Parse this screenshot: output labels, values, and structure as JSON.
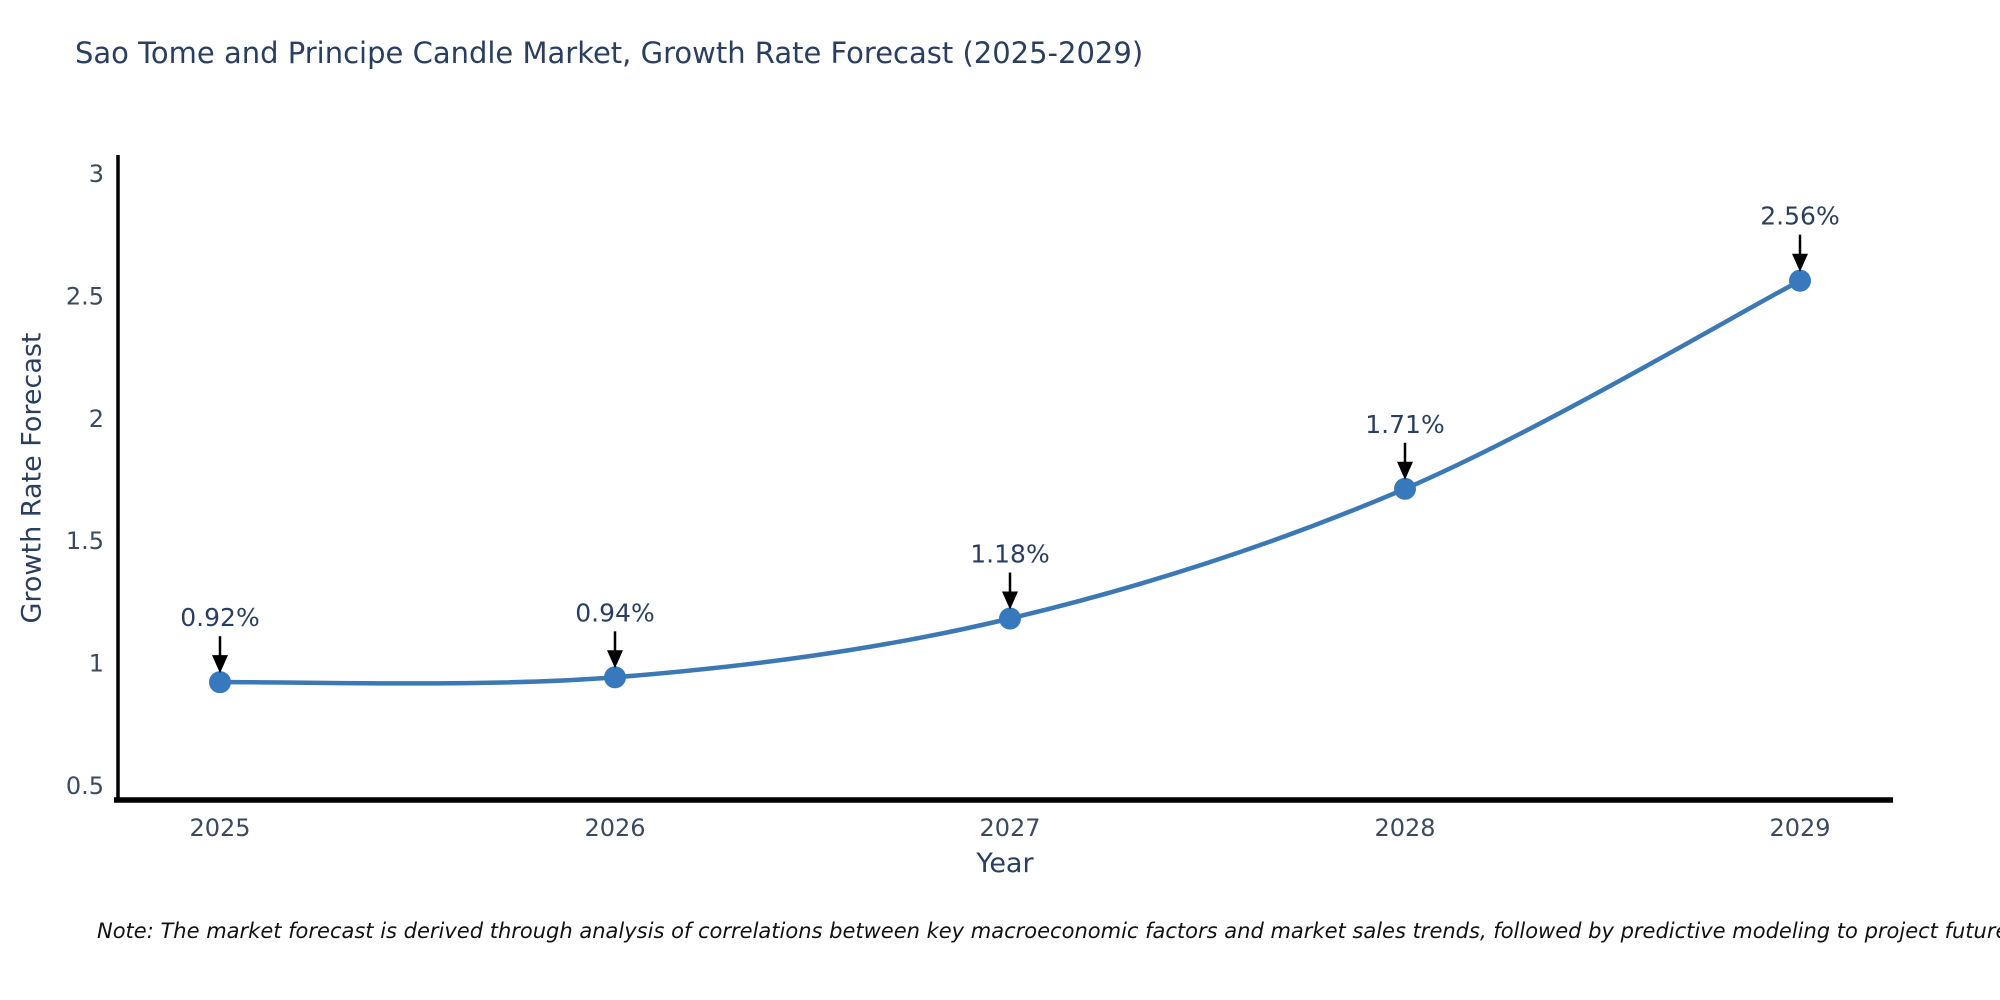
{
  "figure": {
    "note": "Note: The market forecast is derived through analysis of correlations between key macroeconomic factors and market sales trends, followed by predictive modeling to project future sales"
  },
  "chart_data": {
    "type": "line",
    "title": "Sao Tome and Principe Candle Market, Growth Rate Forecast (2025-2029)",
    "x": [
      2025,
      2026,
      2027,
      2028,
      2029
    ],
    "series": [
      {
        "name": "Growth Rate Forecast",
        "values": [
          0.92,
          0.94,
          1.18,
          1.71,
          2.56
        ]
      }
    ],
    "point_labels": [
      "0.92%",
      "0.94%",
      "1.18%",
      "1.71%",
      "2.56%"
    ],
    "xlabel": "Year",
    "ylabel": "Growth Rate Forecast",
    "ylim": [
      0.5,
      3
    ],
    "yticks": [
      0.5,
      1,
      1.5,
      2,
      2.5,
      3
    ],
    "xticks": [
      "2025",
      "2026",
      "2027",
      "2028",
      "2029"
    ],
    "grid": false,
    "legend": "none",
    "line_shape": "spline",
    "colors": {
      "line": "#3c78b4",
      "marker": "#3879bd",
      "axis": "#000000",
      "tick_text": "#3b4a5e",
      "title_text": "#2a3f5f",
      "annotation_text": "#2a3f5f",
      "arrow": "#000000"
    }
  }
}
